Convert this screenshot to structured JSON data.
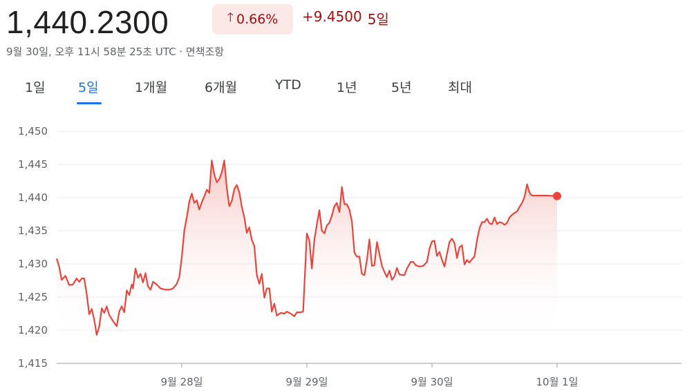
{
  "header": {
    "price": "1,440.2300",
    "percent_change": "0.66%",
    "abs_change": "+9.4500",
    "period_label": "5일",
    "timestamp": "9월 30일, 오후 11시 58분 25초 UTC · 면책조항"
  },
  "tabs": [
    {
      "label": "1일",
      "active": false
    },
    {
      "label": "5일",
      "active": true
    },
    {
      "label": "1개월",
      "active": false
    },
    {
      "label": "6개월",
      "active": false
    },
    {
      "label": "YTD",
      "active": false
    },
    {
      "label": "1년",
      "active": false
    },
    {
      "label": "5년",
      "active": false
    },
    {
      "label": "최대",
      "active": false
    }
  ],
  "colors": {
    "line": "#e8453c",
    "fill_top": "#f6c5c1",
    "badge_bg": "#fce8e6",
    "negative_text": "#a50e0e",
    "accent": "#1a73e8"
  },
  "chart_data": {
    "type": "area",
    "title": "",
    "xlabel": "",
    "ylabel": "",
    "ylim": [
      1415,
      1450
    ],
    "yticks": [
      "1,450",
      "1,445",
      "1,440",
      "1,435",
      "1,430",
      "1,425",
      "1,420",
      "1,415"
    ],
    "ytick_values": [
      1450,
      1445,
      1440,
      1435,
      1430,
      1425,
      1420,
      1415
    ],
    "xticks": [
      {
        "label": "9월 28일",
        "t": 1.0
      },
      {
        "label": "9월 29일",
        "t": 2.0
      },
      {
        "label": "9월 30일",
        "t": 3.0
      },
      {
        "label": "10월 1일",
        "t": 4.0
      }
    ],
    "xlim": [
      0.0,
      5.0
    ],
    "grid": true,
    "series": [
      {
        "values": [
          [
            0.0,
            1430.8
          ],
          [
            0.02,
            1429.6
          ],
          [
            0.04,
            1427.6
          ],
          [
            0.07,
            1428.2
          ],
          [
            0.1,
            1426.8
          ],
          [
            0.13,
            1426.9
          ],
          [
            0.16,
            1427.8
          ],
          [
            0.18,
            1427.3
          ],
          [
            0.2,
            1427.8
          ],
          [
            0.22,
            1427.8
          ],
          [
            0.24,
            1425.5
          ],
          [
            0.26,
            1422.4
          ],
          [
            0.28,
            1423.2
          ],
          [
            0.3,
            1421.6
          ],
          [
            0.32,
            1419.3
          ],
          [
            0.34,
            1420.5
          ],
          [
            0.36,
            1423.3
          ],
          [
            0.38,
            1422.6
          ],
          [
            0.4,
            1423.6
          ],
          [
            0.42,
            1422.3
          ],
          [
            0.45,
            1421.4
          ],
          [
            0.48,
            1420.6
          ],
          [
            0.5,
            1422.8
          ],
          [
            0.52,
            1423.6
          ],
          [
            0.54,
            1422.7
          ],
          [
            0.56,
            1426.0
          ],
          [
            0.58,
            1425.3
          ],
          [
            0.6,
            1426.9
          ],
          [
            0.61,
            1426.3
          ],
          [
            0.63,
            1429.3
          ],
          [
            0.65,
            1427.9
          ],
          [
            0.67,
            1428.5
          ],
          [
            0.69,
            1427.2
          ],
          [
            0.71,
            1428.6
          ],
          [
            0.73,
            1426.6
          ],
          [
            0.75,
            1426.1
          ],
          [
            0.77,
            1427.3
          ],
          [
            0.8,
            1426.9
          ],
          [
            0.83,
            1426.3
          ],
          [
            0.87,
            1426.1
          ],
          [
            0.9,
            1426.1
          ],
          [
            0.93,
            1426.3
          ],
          [
            0.96,
            1427.0
          ],
          [
            0.98,
            1428.0
          ],
          [
            1.0,
            1431.0
          ],
          [
            1.02,
            1435.0
          ],
          [
            1.04,
            1437.0
          ],
          [
            1.06,
            1439.4
          ],
          [
            1.08,
            1440.6
          ],
          [
            1.1,
            1439.2
          ],
          [
            1.12,
            1439.6
          ],
          [
            1.14,
            1438.2
          ],
          [
            1.16,
            1439.3
          ],
          [
            1.18,
            1440.2
          ],
          [
            1.2,
            1441.2
          ],
          [
            1.22,
            1440.7
          ],
          [
            1.24,
            1445.6
          ],
          [
            1.26,
            1443.5
          ],
          [
            1.28,
            1442.3
          ],
          [
            1.3,
            1442.8
          ],
          [
            1.32,
            1443.8
          ],
          [
            1.34,
            1445.6
          ],
          [
            1.36,
            1441.4
          ],
          [
            1.38,
            1438.7
          ],
          [
            1.4,
            1439.5
          ],
          [
            1.42,
            1441.3
          ],
          [
            1.44,
            1441.9
          ],
          [
            1.46,
            1440.8
          ],
          [
            1.48,
            1438.6
          ],
          [
            1.5,
            1437.0
          ],
          [
            1.52,
            1434.7
          ],
          [
            1.54,
            1435.5
          ],
          [
            1.56,
            1433.6
          ],
          [
            1.58,
            1432.7
          ],
          [
            1.6,
            1428.3
          ],
          [
            1.62,
            1427.0
          ],
          [
            1.64,
            1428.5
          ],
          [
            1.66,
            1424.9
          ],
          [
            1.68,
            1426.3
          ],
          [
            1.7,
            1426.3
          ],
          [
            1.72,
            1422.8
          ],
          [
            1.74,
            1424.0
          ],
          [
            1.76,
            1422.2
          ],
          [
            1.79,
            1422.6
          ],
          [
            1.82,
            1422.5
          ],
          [
            1.84,
            1422.8
          ],
          [
            1.87,
            1422.5
          ],
          [
            1.9,
            1422.1
          ],
          [
            1.92,
            1422.7
          ],
          [
            1.95,
            1422.7
          ],
          [
            1.97,
            1422.8
          ],
          [
            2.0,
            1434.6
          ],
          [
            2.02,
            1433.5
          ],
          [
            2.04,
            1429.3
          ],
          [
            2.06,
            1433.7
          ],
          [
            2.08,
            1436.0
          ],
          [
            2.1,
            1438.1
          ],
          [
            2.12,
            1435.0
          ],
          [
            2.14,
            1434.6
          ],
          [
            2.16,
            1435.8
          ],
          [
            2.18,
            1436.2
          ],
          [
            2.2,
            1437.3
          ],
          [
            2.22,
            1438.7
          ],
          [
            2.24,
            1439.2
          ],
          [
            2.26,
            1437.8
          ],
          [
            2.28,
            1441.6
          ],
          [
            2.3,
            1439.0
          ],
          [
            2.32,
            1439.0
          ],
          [
            2.34,
            1438.2
          ],
          [
            2.36,
            1436.4
          ],
          [
            2.38,
            1431.7
          ],
          [
            2.4,
            1431.1
          ],
          [
            2.42,
            1431.1
          ],
          [
            2.44,
            1428.5
          ],
          [
            2.46,
            1428.3
          ],
          [
            2.48,
            1430.6
          ],
          [
            2.5,
            1433.7
          ],
          [
            2.52,
            1429.7
          ],
          [
            2.54,
            1429.8
          ],
          [
            2.56,
            1433.3
          ],
          [
            2.58,
            1431.5
          ],
          [
            2.6,
            1429.7
          ],
          [
            2.62,
            1428.8
          ],
          [
            2.64,
            1428.0
          ],
          [
            2.66,
            1429.0
          ],
          [
            2.68,
            1427.6
          ],
          [
            2.7,
            1428.1
          ],
          [
            2.72,
            1429.4
          ],
          [
            2.74,
            1428.4
          ],
          [
            2.78,
            1428.3
          ],
          [
            2.8,
            1429.3
          ],
          [
            2.83,
            1430.3
          ],
          [
            2.85,
            1430.3
          ],
          [
            2.87,
            1429.8
          ],
          [
            2.9,
            1429.6
          ],
          [
            2.93,
            1429.7
          ],
          [
            2.96,
            1430.3
          ],
          [
            2.98,
            1432.3
          ],
          [
            3.0,
            1433.4
          ],
          [
            3.02,
            1433.5
          ],
          [
            3.04,
            1431.2
          ],
          [
            3.06,
            1431.8
          ],
          [
            3.08,
            1430.6
          ],
          [
            3.1,
            1429.6
          ],
          [
            3.12,
            1431.5
          ],
          [
            3.14,
            1433.3
          ],
          [
            3.16,
            1433.8
          ],
          [
            3.18,
            1433.1
          ],
          [
            3.2,
            1430.9
          ],
          [
            3.22,
            1432.5
          ],
          [
            3.24,
            1432.8
          ],
          [
            3.26,
            1429.9
          ],
          [
            3.28,
            1430.6
          ],
          [
            3.3,
            1430.2
          ],
          [
            3.32,
            1430.7
          ],
          [
            3.34,
            1431.1
          ],
          [
            3.36,
            1433.6
          ],
          [
            3.38,
            1435.4
          ],
          [
            3.4,
            1436.3
          ],
          [
            3.42,
            1436.3
          ],
          [
            3.44,
            1436.8
          ],
          [
            3.46,
            1436.1
          ],
          [
            3.48,
            1436.0
          ],
          [
            3.5,
            1437.0
          ],
          [
            3.52,
            1436.0
          ],
          [
            3.54,
            1436.3
          ],
          [
            3.56,
            1436.2
          ],
          [
            3.58,
            1435.9
          ],
          [
            3.6,
            1436.2
          ],
          [
            3.62,
            1437.0
          ],
          [
            3.64,
            1437.4
          ],
          [
            3.66,
            1437.7
          ],
          [
            3.68,
            1437.9
          ],
          [
            3.7,
            1438.6
          ],
          [
            3.72,
            1439.2
          ],
          [
            3.74,
            1440.1
          ],
          [
            3.76,
            1442.0
          ],
          [
            3.78,
            1440.7
          ],
          [
            3.8,
            1440.3
          ],
          [
            3.84,
            1440.3
          ],
          [
            3.88,
            1440.3
          ],
          [
            3.92,
            1440.3
          ],
          [
            4.0,
            1440.23
          ]
        ]
      }
    ],
    "last_value": 1440.23
  }
}
